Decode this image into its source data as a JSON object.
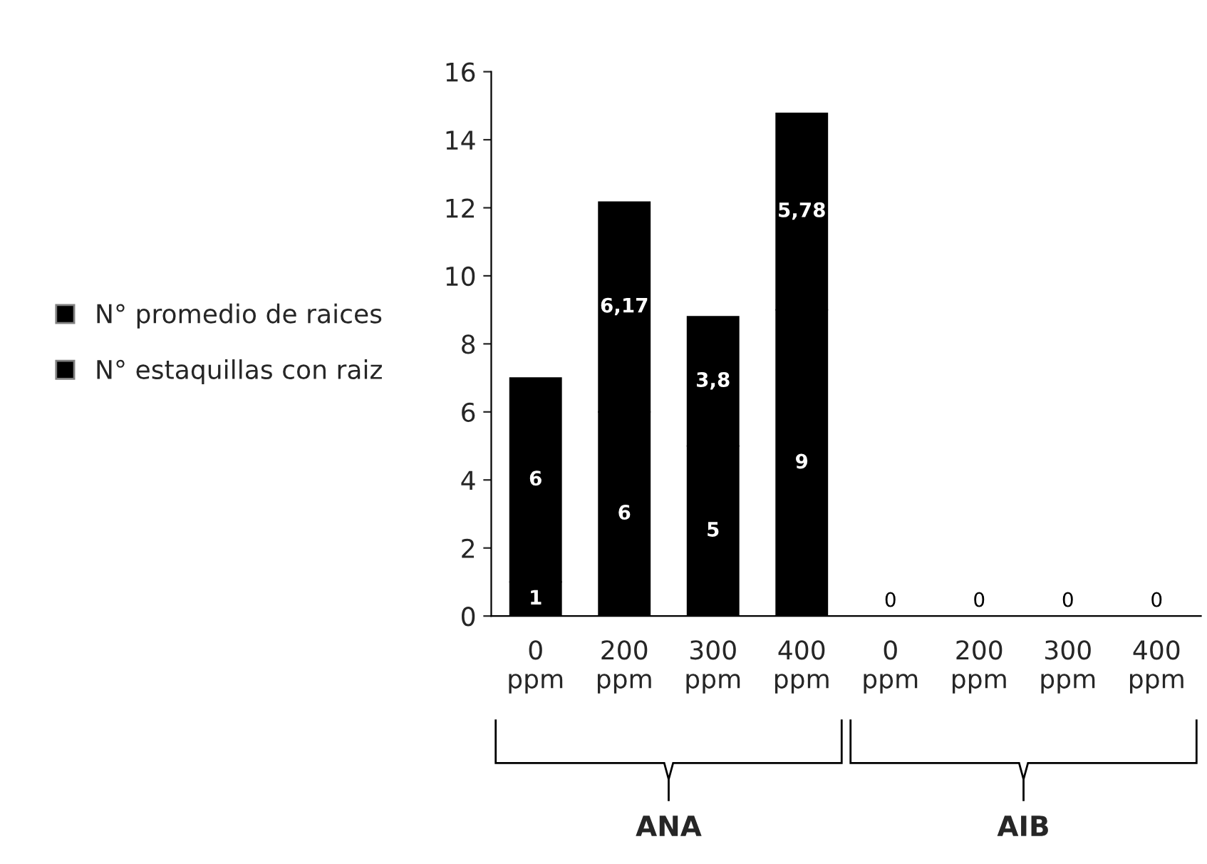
{
  "chart_data": {
    "type": "bar",
    "stacked": true,
    "categories": [
      "0 ppm",
      "200 ppm",
      "300 ppm",
      "400 ppm",
      "0 ppm",
      "200 ppm",
      "300 ppm",
      "400 ppm"
    ],
    "series": [
      {
        "name": "N° estaquillas con raiz",
        "color": "#000000",
        "values": [
          1,
          6,
          5,
          9,
          0,
          0,
          0,
          0
        ],
        "value_labels": [
          "1",
          "6",
          "5",
          "9",
          "0",
          "0",
          "0",
          "0"
        ]
      },
      {
        "name": "N° promedio de raices",
        "color": "#000000",
        "values": [
          6,
          6.17,
          3.8,
          5.78,
          0,
          0,
          0,
          0
        ],
        "value_labels": [
          "6",
          "6,17",
          "3,8",
          "5,78",
          null,
          null,
          null,
          null
        ]
      }
    ],
    "ylim": [
      0,
      16
    ],
    "yticks": [
      0,
      2,
      4,
      6,
      8,
      10,
      12,
      14,
      16
    ],
    "grid": false,
    "legend": "left",
    "annotations": [
      "ANA",
      "AIB"
    ]
  }
}
